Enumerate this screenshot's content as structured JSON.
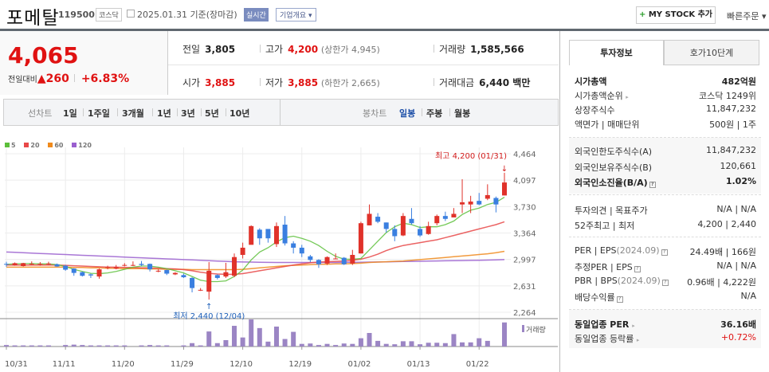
{
  "header": {
    "title": "포메탈",
    "code": "119500",
    "market": "코스닥",
    "date": "2025.01.31 기준(장마감)",
    "realtime_label": "실시간",
    "company_overview_label": "기업개요 ▾",
    "mystock_label": "MY STOCK 추가",
    "mystock_plus": "+",
    "quick_order_label": "빠른주문 ▾"
  },
  "price": {
    "current": "4,065",
    "change_label": "전일대비",
    "change_arrow": "▲",
    "change_value": "260",
    "change_pct": "+6.83%"
  },
  "stats": {
    "prev_close_label": "전일",
    "prev_close": "3,805",
    "high_label": "고가",
    "high": "4,200",
    "upper_limit": "(상한가 4,945)",
    "volume_label": "거래량",
    "volume": "1,585,566",
    "open_label": "시가",
    "open": "3,885",
    "low_label": "저가",
    "low": "3,885",
    "lower_limit": "(하한가 2,665)",
    "value_label": "거래대금",
    "value": "6,440 백만"
  },
  "period_bar": {
    "line_chart_label": "선차트",
    "line_periods": [
      "1일",
      "1주일",
      "3개월",
      "1년",
      "3년",
      "5년",
      "10년"
    ],
    "candle_chart_label": "봉차트",
    "candle_periods": [
      "일봉",
      "주봉",
      "월봉"
    ],
    "active_candle": "일봉"
  },
  "legend": [
    {
      "label": "5",
      "color": "#5cbf3a"
    },
    {
      "label": "20",
      "color": "#e84848"
    },
    {
      "label": "60",
      "color": "#f08a1c"
    },
    {
      "label": "120",
      "color": "#9a5fcf"
    }
  ],
  "colors": {
    "up": "#e01212",
    "candle_up": "#e0322a",
    "candle_down": "#3a7fe0",
    "volume": "#9b85c4",
    "active_tab": "#1d4fa8"
  },
  "chart_data": {
    "type": "candlestick",
    "title": "포메탈 일봉",
    "y_ticks": [
      "4,464",
      "4,097",
      "3,730",
      "3,364",
      "2,997",
      "2,631",
      "2,264"
    ],
    "ylim": [
      2264,
      4464
    ],
    "x_ticks": [
      "10/31",
      "11/11",
      "11/20",
      "11/29",
      "12/10",
      "12/19",
      "01/02",
      "01/13",
      "01/22"
    ],
    "max_annotation": "최고 4,200 (01/31)",
    "min_annotation": "최저 2,440 (12/04)",
    "volume_label": "거래량",
    "candles": [
      [
        2935,
        2930,
        2965,
        2895
      ],
      [
        2915,
        2945,
        2955,
        2910
      ],
      [
        2905,
        2945,
        2950,
        2900
      ],
      [
        2930,
        2935,
        2970,
        2920
      ],
      [
        2935,
        2935,
        2960,
        2910
      ],
      [
        2940,
        2940,
        2965,
        2920
      ],
      [
        2930,
        2900,
        2940,
        2895
      ],
      [
        2910,
        2855,
        2920,
        2840
      ],
      [
        2870,
        2810,
        2875,
        2770
      ],
      [
        2820,
        2770,
        2830,
        2760
      ],
      [
        2790,
        2775,
        2800,
        2740
      ],
      [
        2760,
        2860,
        2870,
        2730
      ],
      [
        2880,
        2890,
        2910,
        2860
      ],
      [
        2870,
        2890,
        2920,
        2860
      ],
      [
        2915,
        2920,
        2945,
        2900
      ],
      [
        2920,
        2920,
        2970,
        2905
      ],
      [
        2935,
        2920,
        2975,
        2905
      ],
      [
        2935,
        2860,
        2940,
        2830
      ],
      [
        2840,
        2840,
        2860,
        2820
      ],
      [
        2850,
        2800,
        2855,
        2780
      ],
      [
        2790,
        2810,
        2820,
        2780
      ],
      [
        2780,
        2750,
        2800,
        2740
      ],
      [
        2740,
        2600,
        2750,
        2540
      ],
      [
        2570,
        2575,
        2600,
        2560
      ],
      [
        2550,
        2840,
        2960,
        2440
      ],
      [
        2780,
        2740,
        2790,
        2720
      ],
      [
        2760,
        2820,
        2950,
        2740
      ],
      [
        2770,
        3030,
        3080,
        2750
      ],
      [
        3060,
        3160,
        3230,
        3010
      ],
      [
        3200,
        3460,
        3470,
        3280
      ],
      [
        3410,
        3290,
        3430,
        3200
      ],
      [
        3420,
        3290,
        3380,
        3230
      ],
      [
        3210,
        3460,
        3510,
        3170
      ],
      [
        3480,
        3220,
        3600,
        3190
      ],
      [
        3220,
        3160,
        3250,
        3080
      ],
      [
        3160,
        3080,
        3200,
        3030
      ],
      [
        3040,
        2990,
        3060,
        2960
      ],
      [
        2990,
        2930,
        3000,
        2880
      ],
      [
        2940,
        3030,
        3040,
        2920
      ],
      [
        3010,
        3010,
        3080,
        3000
      ],
      [
        3020,
        2930,
        3030,
        2920
      ],
      [
        2940,
        3060,
        3130,
        2920
      ],
      [
        3080,
        3500,
        3520,
        3080
      ],
      [
        3470,
        3630,
        3760,
        3470
      ],
      [
        3590,
        3520,
        3640,
        3500
      ],
      [
        3510,
        3420,
        3510,
        3370
      ],
      [
        3420,
        3320,
        3470,
        3250
      ],
      [
        3330,
        3600,
        3640,
        3320
      ],
      [
        3560,
        3500,
        3710,
        3480
      ],
      [
        3420,
        3330,
        3460,
        3310
      ],
      [
        3350,
        3460,
        3520,
        3340
      ],
      [
        3500,
        3600,
        3620,
        3470
      ],
      [
        3600,
        3560,
        3660,
        3530
      ],
      [
        3580,
        3630,
        3710,
        3600
      ],
      [
        3760,
        3790,
        4110,
        3640
      ],
      [
        3760,
        3800,
        3880,
        3640
      ],
      [
        3810,
        3760,
        3920,
        3750
      ],
      [
        3840,
        3890,
        4040,
        3820
      ],
      [
        3850,
        3760,
        3870,
        3650
      ],
      [
        3885,
        4065,
        4200,
        3885
      ]
    ],
    "ma5": [
      2930,
      2935,
      2940,
      2940,
      2935,
      2935,
      2925,
      2900,
      2860,
      2830,
      2805,
      2800,
      2810,
      2830,
      2860,
      2890,
      2905,
      2905,
      2890,
      2870,
      2840,
      2810,
      2760,
      2710,
      2690,
      2690,
      2700,
      2760,
      2850,
      2990,
      3100,
      3160,
      3240,
      3300,
      3320,
      3290,
      3250,
      3190,
      3110,
      3040,
      3000,
      3000,
      3010,
      3130,
      3250,
      3370,
      3450,
      3500,
      3480,
      3440,
      3450,
      3450,
      3480,
      3530,
      3620,
      3680,
      3710,
      3760,
      3790,
      3860
    ],
    "ma20": [
      2920,
      2920,
      2920,
      2920,
      2920,
      2920,
      2920,
      2915,
      2910,
      2905,
      2900,
      2895,
      2890,
      2890,
      2885,
      2885,
      2880,
      2880,
      2875,
      2870,
      2865,
      2855,
      2840,
      2820,
      2805,
      2795,
      2790,
      2790,
      2800,
      2820,
      2840,
      2860,
      2880,
      2900,
      2920,
      2935,
      2950,
      2960,
      2965,
      2970,
      2975,
      2985,
      3000,
      3030,
      3070,
      3120,
      3160,
      3190,
      3210,
      3230,
      3250,
      3270,
      3300,
      3330,
      3360,
      3390,
      3420,
      3450,
      3480,
      3520
    ],
    "ma60": [
      2890,
      2890,
      2890,
      2890,
      2890,
      2890,
      2890,
      2890,
      2885,
      2885,
      2880,
      2880,
      2875,
      2875,
      2870,
      2870,
      2870,
      2865,
      2865,
      2860,
      2860,
      2860,
      2855,
      2855,
      2855,
      2855,
      2855,
      2855,
      2860,
      2870,
      2880,
      2890,
      2900,
      2910,
      2915,
      2920,
      2925,
      2930,
      2930,
      2935,
      2935,
      2940,
      2945,
      2955,
      2960,
      2965,
      2970,
      2975,
      2985,
      2995,
      3005,
      3015,
      3025,
      3035,
      3045,
      3055,
      3065,
      3075,
      3090,
      3110
    ],
    "ma120": [
      3100,
      3095,
      3090,
      3085,
      3080,
      3075,
      3070,
      3065,
      3060,
      3055,
      3050,
      3045,
      3040,
      3035,
      3030,
      3025,
      3020,
      3015,
      3010,
      3005,
      3000,
      2995,
      2990,
      2985,
      2980,
      2975,
      2970,
      2965,
      2962,
      2960,
      2958,
      2956,
      2955,
      2955,
      2955,
      2955,
      2955,
      2955,
      2955,
      2955,
      2956,
      2957,
      2958,
      2960,
      2962,
      2964,
      2966,
      2968,
      2970,
      2972,
      2974,
      2976,
      2978,
      2980,
      2982,
      2984,
      2986,
      2988,
      2990,
      2995
    ],
    "volume": [
      4,
      3,
      3,
      3,
      3,
      3,
      0,
      4,
      5,
      4,
      3,
      3,
      3,
      3,
      3,
      0,
      3,
      4,
      3,
      3,
      0,
      3,
      9,
      3,
      40,
      9,
      17,
      55,
      24,
      72,
      49,
      13,
      53,
      20,
      39,
      7,
      8,
      4,
      7,
      4,
      8,
      7,
      22,
      36,
      15,
      7,
      6,
      14,
      14,
      6,
      10,
      10,
      9,
      33,
      11,
      11,
      22,
      15,
      0,
      64
    ]
  },
  "right_panel": {
    "tabs": [
      "투자정보",
      "호가10단계"
    ],
    "market_cap_label": "시가총액",
    "market_cap": "482억원",
    "market_cap_rank_label": "시가총액순위",
    "market_cap_rank": "코스닥 1249위",
    "listed_shares_label": "상장주식수",
    "listed_shares": "11,847,232",
    "par_label": "액면가 | 매매단위",
    "par_value": "500원 | 1주",
    "foreign_limit_label": "외국인한도주식수(A)",
    "foreign_limit": "11,847,232",
    "foreign_hold_label": "외국인보유주식수(B)",
    "foreign_hold": "120,661",
    "foreign_ratio_label": "외국인소진율(B/A)",
    "foreign_ratio": "1.02%",
    "opinion_label": "투자의견 | 목표주가",
    "opinion_value": "N/A | N/A",
    "week52_label": "52주최고 | 최저",
    "week52_value": "4,200 | 2,440",
    "per_label": "PER | EPS",
    "per_period": "(2024.09)",
    "per_value": "24.49배 | 166원",
    "est_per_label": "추정PER | EPS",
    "est_per_value": "N/A | N/A",
    "pbr_label": "PBR | BPS",
    "pbr_period": "(2024.09)",
    "pbr_value": "0.96배 | 4,222원",
    "dividend_label": "배당수익률",
    "dividend_value": "N/A",
    "sector_per_label": "동일업종 PER",
    "sector_per": "36.16배",
    "sector_change_label": "동일업종 등락률",
    "sector_change": "+0.72%"
  }
}
